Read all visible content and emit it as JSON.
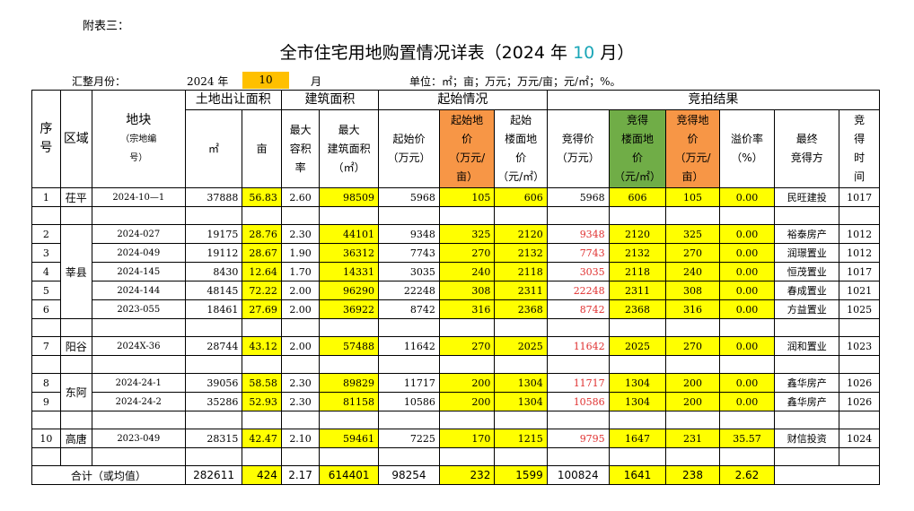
{
  "note": "附表三：",
  "title": {
    "prefix": "全市住宅用地购置情况详表（2024 年 ",
    "month": "10",
    "suffix": " 月）"
  },
  "summary": {
    "label": "汇整月份：",
    "year": "2024 年",
    "month": "10",
    "month_unit": "月",
    "units": "单位：㎡；亩；万元；万元/亩；元/㎡；%。"
  },
  "headers": {
    "seq": [
      "序",
      "号"
    ],
    "district": "区域",
    "parcel": "地块",
    "parcel_sub": [
      "（宗地编",
      "号）"
    ],
    "land_area": "土地出让面积",
    "land_sqm": "㎡",
    "land_mu": "亩",
    "build_area": "建筑面积",
    "max_far": [
      "最大",
      "容积",
      "率"
    ],
    "max_build": [
      "最大",
      "建筑面积"
    ],
    "max_build_unit": "（㎡）",
    "start": "起始情况",
    "start_price": "起始价",
    "start_price_unit": "（万元）",
    "start_land_price": [
      "起始地",
      "价"
    ],
    "start_land_price_unit": [
      "（万元/",
      "亩）"
    ],
    "start_floor_price": [
      "起始",
      "楼面地",
      "价"
    ],
    "start_floor_price_unit": "（元/㎡）",
    "result": "竞拍结果",
    "win_price": "竞得价",
    "win_price_unit": "（万元）",
    "win_floor_price": [
      "竞得",
      "楼面地",
      "价"
    ],
    "win_floor_price_unit": "（元/㎡）",
    "win_land_price": [
      "竞得地",
      "价"
    ],
    "win_land_price_unit": [
      "（万元/",
      "亩）"
    ],
    "premium": "溢价率",
    "premium_unit": "（%）",
    "winner": [
      "最终",
      "竞得方"
    ],
    "time": [
      "竞",
      "得",
      "时",
      "间"
    ]
  },
  "groups": [
    {
      "district": "茌平",
      "rows": [
        {
          "seq": "1",
          "code": "2024-10—1",
          "sqm": "37888",
          "mu": "56.83",
          "far": "2.60",
          "build": "98509",
          "start": "5968",
          "start_land": "105",
          "start_floor": "606",
          "win": "5968",
          "win_floor": "606",
          "win_land": "105",
          "premium": "0.00",
          "winner": "民旺建投",
          "time": "1017",
          "win_red": false
        }
      ]
    },
    {
      "district": "莘县",
      "rows": [
        {
          "seq": "2",
          "code": "2024-027",
          "sqm": "19175",
          "mu": "28.76",
          "far": "2.30",
          "build": "44101",
          "start": "9348",
          "start_land": "325",
          "start_floor": "2120",
          "win": "9348",
          "win_floor": "2120",
          "win_land": "325",
          "premium": "0.00",
          "winner": "裕泰房产",
          "time": "1012",
          "win_red": true
        },
        {
          "seq": "3",
          "code": "2024-049",
          "sqm": "19112",
          "mu": "28.67",
          "far": "1.90",
          "build": "36312",
          "start": "7743",
          "start_land": "270",
          "start_floor": "2132",
          "win": "7743",
          "win_floor": "2132",
          "win_land": "270",
          "premium": "0.00",
          "winner": "润璟置业",
          "time": "1012",
          "win_red": true
        },
        {
          "seq": "4",
          "code": "2024-145",
          "sqm": "8430",
          "mu": "12.64",
          "far": "1.70",
          "build": "14331",
          "start": "3035",
          "start_land": "240",
          "start_floor": "2118",
          "win": "3035",
          "win_floor": "2118",
          "win_land": "240",
          "premium": "0.00",
          "winner": "恒茂置业",
          "time": "1017",
          "win_red": true
        },
        {
          "seq": "5",
          "code": "2024-144",
          "sqm": "48145",
          "mu": "72.22",
          "far": "2.00",
          "build": "96290",
          "start": "22248",
          "start_land": "308",
          "start_floor": "2311",
          "win": "22248",
          "win_floor": "2311",
          "win_land": "308",
          "premium": "0.00",
          "winner": "春成置业",
          "time": "1021",
          "win_red": true
        },
        {
          "seq": "6",
          "code": "2023-055",
          "sqm": "18461",
          "mu": "27.69",
          "far": "2.00",
          "build": "36922",
          "start": "8742",
          "start_land": "316",
          "start_floor": "2368",
          "win": "8742",
          "win_floor": "2368",
          "win_land": "316",
          "premium": "0.00",
          "winner": "方益置业",
          "time": "1025",
          "win_red": true
        }
      ]
    },
    {
      "district": "阳谷",
      "rows": [
        {
          "seq": "7",
          "code": "2024X-36",
          "sqm": "28744",
          "mu": "43.12",
          "far": "2.00",
          "build": "57488",
          "start": "11642",
          "start_land": "270",
          "start_floor": "2025",
          "win": "11642",
          "win_floor": "2025",
          "win_land": "270",
          "premium": "0.00",
          "winner": "润和置业",
          "time": "1023",
          "win_red": true
        }
      ]
    },
    {
      "district": "东阿",
      "rows": [
        {
          "seq": "8",
          "code": "2024-24-1",
          "sqm": "39056",
          "mu": "58.58",
          "far": "2.30",
          "build": "89829",
          "start": "11717",
          "start_land": "200",
          "start_floor": "1304",
          "win": "11717",
          "win_floor": "1304",
          "win_land": "200",
          "premium": "0.00",
          "winner": "鑫华房产",
          "time": "1026",
          "win_red": true
        },
        {
          "seq": "9",
          "code": "2024-24-2",
          "sqm": "35286",
          "mu": "52.93",
          "far": "2.30",
          "build": "81158",
          "start": "10586",
          "start_land": "200",
          "start_floor": "1304",
          "win": "10586",
          "win_floor": "1304",
          "win_land": "200",
          "premium": "0.00",
          "winner": "鑫华房产",
          "time": "1026",
          "win_red": true
        }
      ]
    },
    {
      "district": "高唐",
      "rows": [
        {
          "seq": "10",
          "code": "2023-049",
          "sqm": "28315",
          "mu": "42.47",
          "far": "2.10",
          "build": "59461",
          "start": "7225",
          "start_land": "170",
          "start_floor": "1215",
          "win": "9795",
          "win_floor": "1647",
          "win_land": "231",
          "premium": "35.57",
          "winner": "财信投资",
          "time": "1024",
          "win_red": true
        }
      ]
    }
  ],
  "total": {
    "label": "合计（或均值）",
    "sqm": "282611",
    "mu": "424",
    "far": "2.17",
    "build": "614401",
    "start": "98254",
    "start_land": "232",
    "start_floor": "1599",
    "win": "100824",
    "win_floor": "1641",
    "win_land": "238",
    "premium": "2.62"
  }
}
